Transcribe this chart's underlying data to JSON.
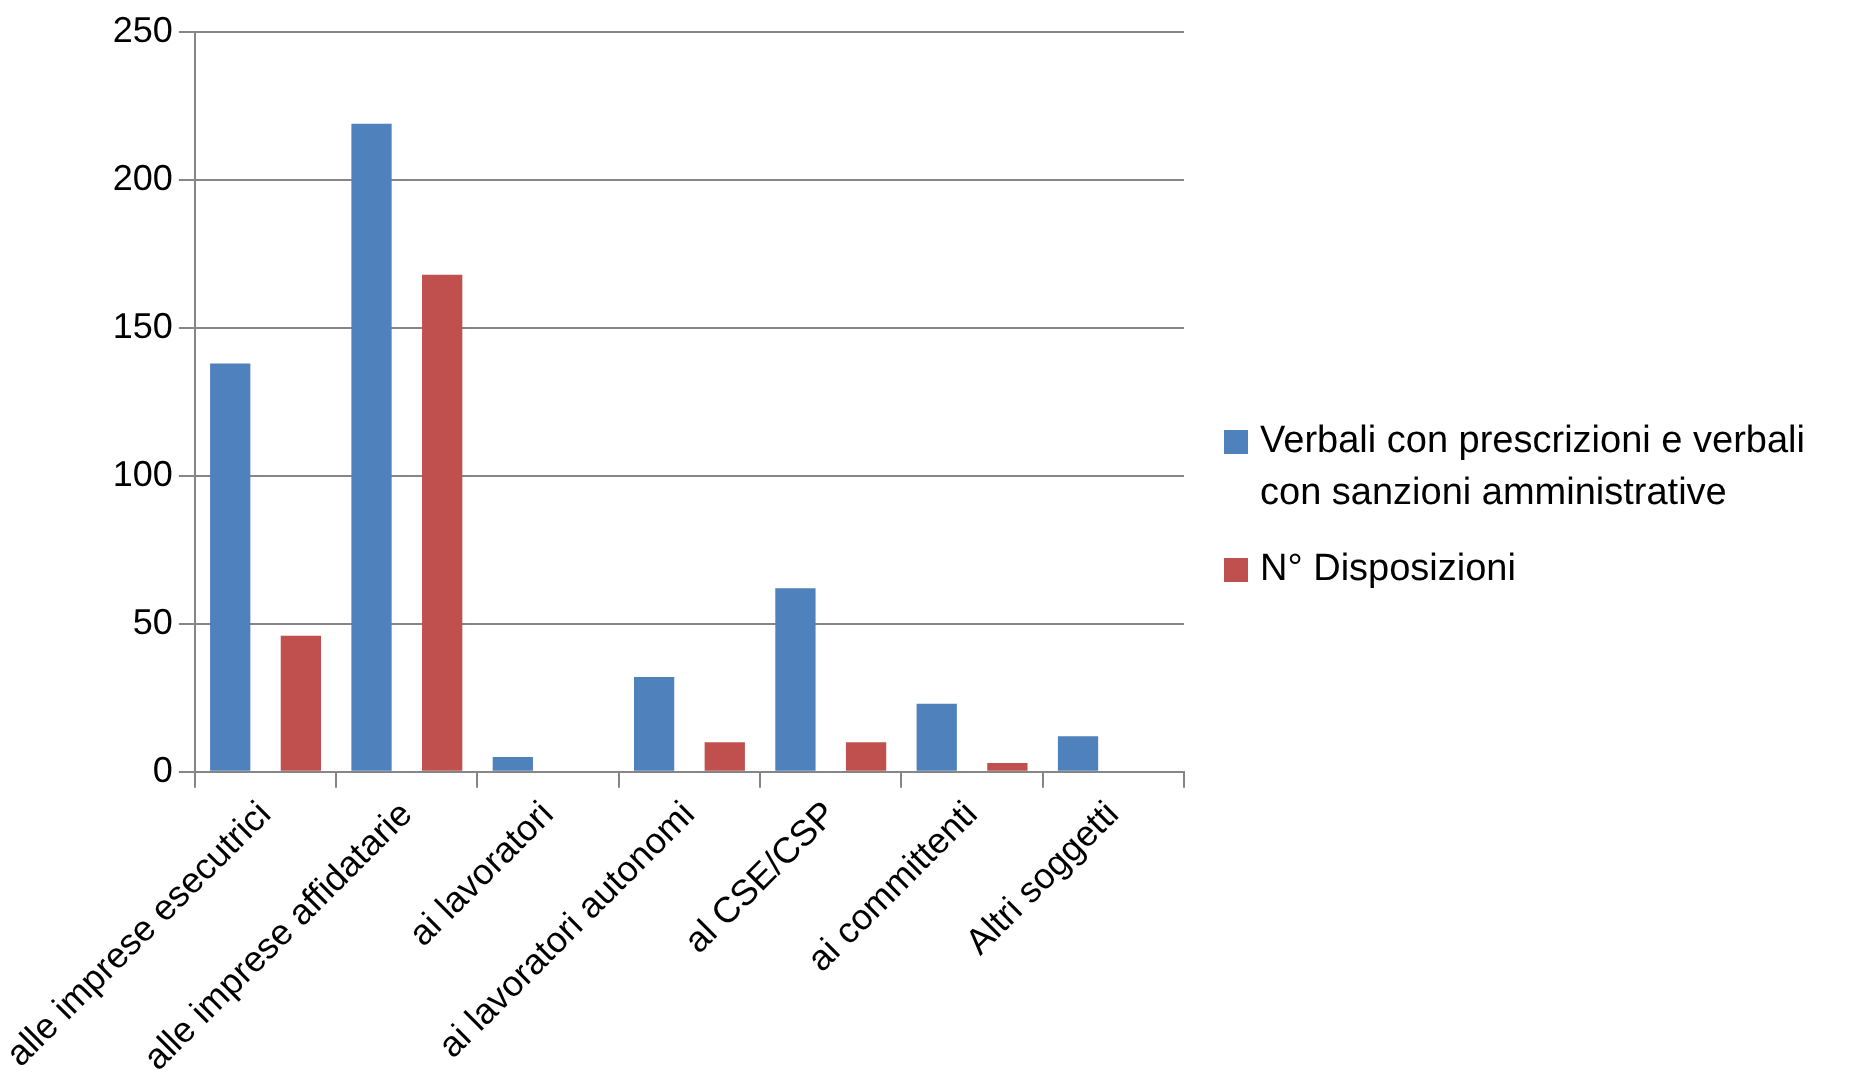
{
  "chart_data": {
    "type": "bar",
    "categories": [
      "alle imprese esecutrici",
      "alle imprese affidatarie",
      "ai lavoratori",
      "ai lavoratori autonomi",
      "al CSE/CSP",
      "ai committenti",
      "Altri soggetti"
    ],
    "series": [
      {
        "name": "Verbali con prescrizioni e verbali con sanzioni amministrative",
        "color": "#4f81bd",
        "values": [
          138,
          219,
          5,
          32,
          62,
          23,
          12
        ]
      },
      {
        "name": "N° Disposizioni",
        "color": "#c0504d",
        "values": [
          46,
          168,
          0,
          10,
          10,
          3,
          0
        ]
      }
    ],
    "ylim": [
      0,
      250
    ],
    "yticks": [
      0,
      50,
      100,
      150,
      200,
      250
    ],
    "grid": "y",
    "legend": "right"
  }
}
